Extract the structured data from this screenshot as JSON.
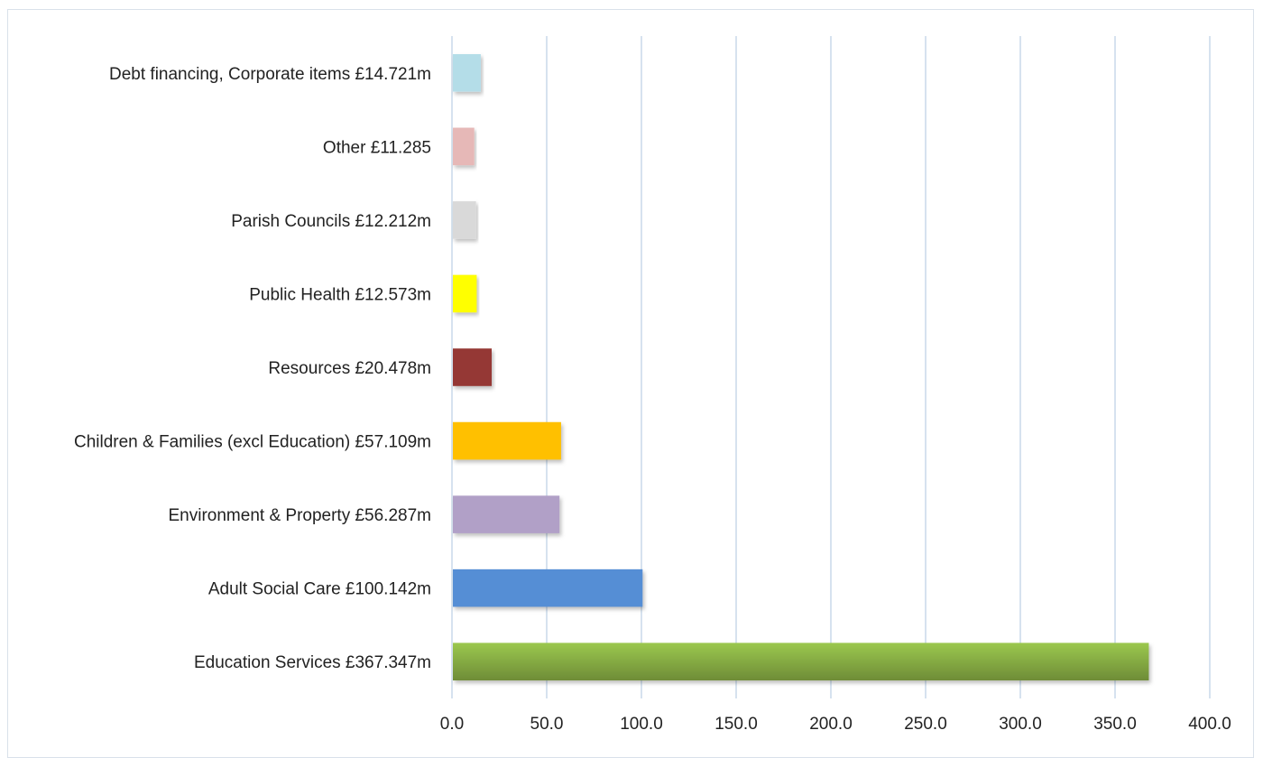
{
  "chart_data": {
    "type": "bar",
    "orientation": "horizontal",
    "title": "",
    "xlabel": "",
    "ylabel": "",
    "xlim": [
      0,
      400
    ],
    "x_ticks": [
      "0.0",
      "50.0",
      "100.0",
      "150.0",
      "200.0",
      "250.0",
      "300.0",
      "350.0",
      "400.0"
    ],
    "grid": "vertical",
    "legend": "none",
    "categories": [
      "Debt financing, Corporate items £14.721m",
      "Other £11.285",
      "Parish Councils £12.212m",
      "Public Health £12.573m",
      "Resources £20.478m",
      "Children & Families (excl Education) £57.109m",
      "Environment & Property £56.287m",
      "Adult Social Care £100.142m",
      "Education Services £367.347m"
    ],
    "values": [
      14.721,
      11.285,
      12.212,
      12.573,
      20.478,
      57.109,
      56.287,
      100.142,
      367.347
    ],
    "colors": [
      "#b4dde8",
      "#e6b8b7",
      "#d9d9d9",
      "#ffff00",
      "#953735",
      "#ffc000",
      "#b1a0c7",
      "#558ed5",
      "#77933c"
    ]
  }
}
